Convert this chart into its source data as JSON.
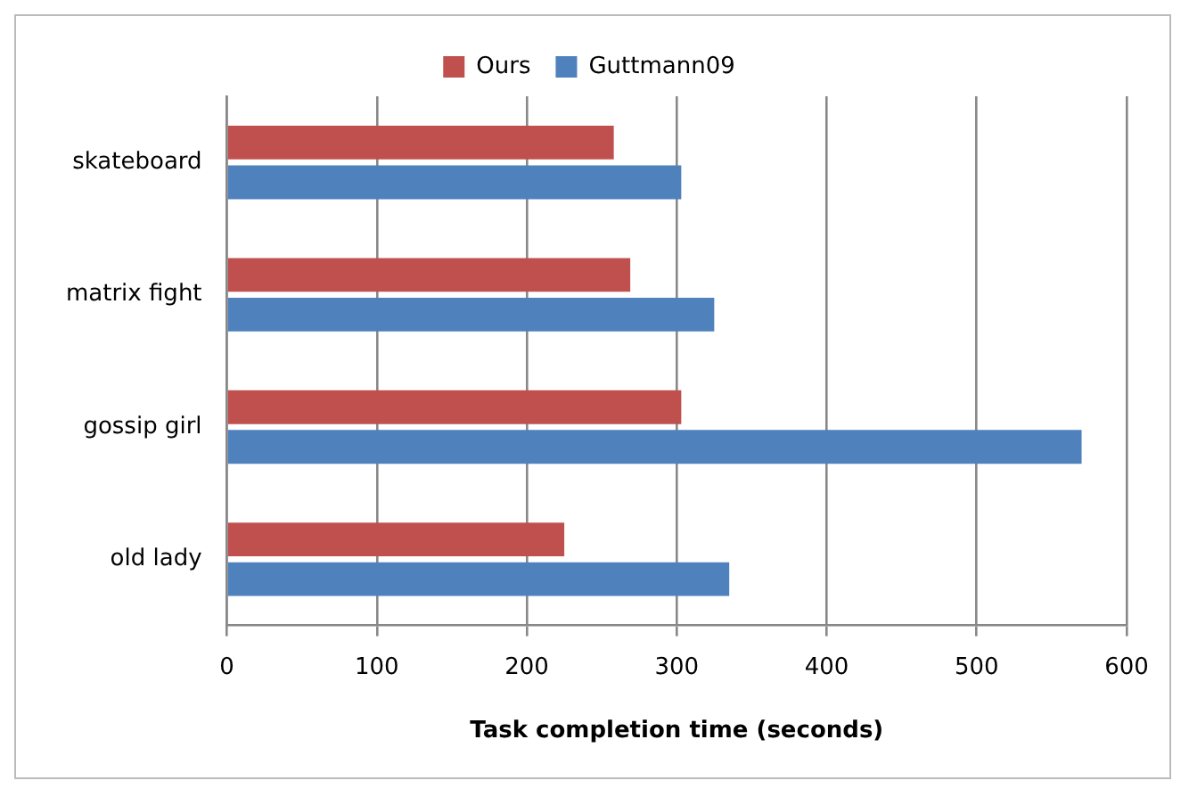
{
  "chart_data": {
    "type": "bar",
    "orientation": "horizontal",
    "xlabel": "Task completion time (seconds)",
    "categories": [
      "skateboard",
      "matrix fight",
      "gossip girl",
      "old lady"
    ],
    "series": [
      {
        "name": "Ours",
        "color": "#c0504d",
        "values": [
          258,
          269,
          303,
          225
        ]
      },
      {
        "name": "Guttmann09",
        "color": "#4f81bd",
        "values": [
          303,
          325,
          570,
          335
        ]
      }
    ],
    "xlim": [
      0,
      600
    ],
    "xticks": [
      0,
      100,
      200,
      300,
      400,
      500,
      600
    ],
    "grid": "x",
    "legend": "top"
  }
}
